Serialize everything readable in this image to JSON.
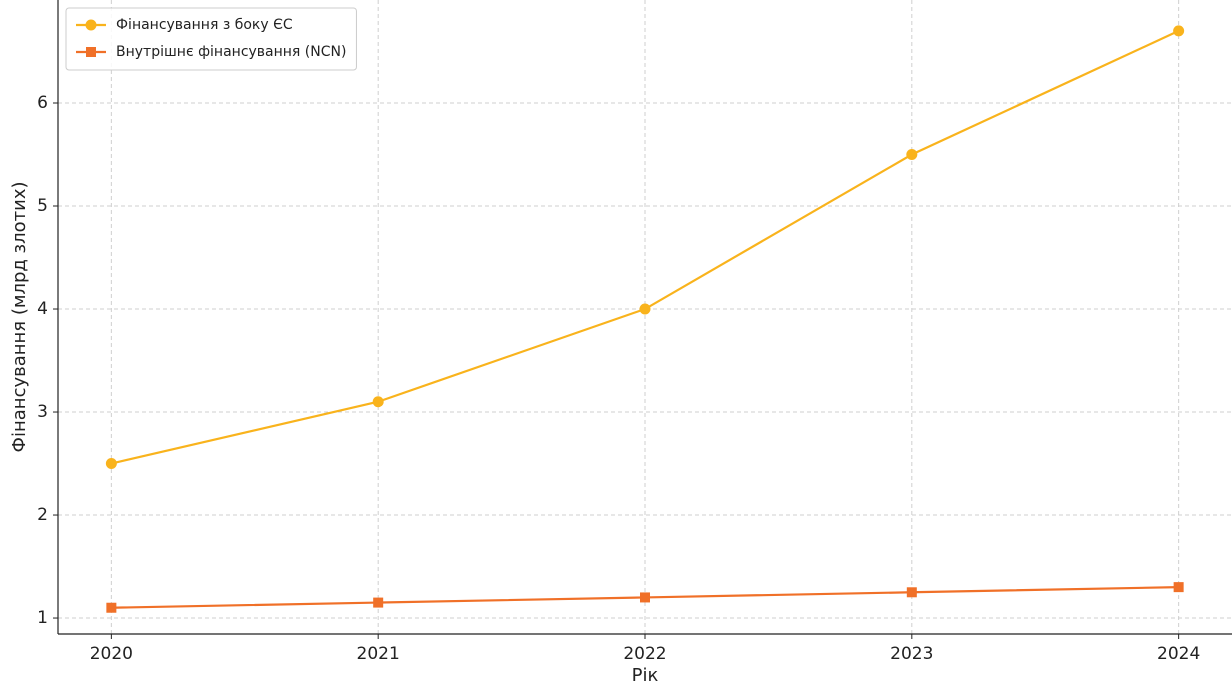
{
  "chart_data": {
    "type": "line",
    "xlabel": "Рік",
    "ylabel": "Фінансування (млрд злотих)",
    "x": [
      2020,
      2021,
      2022,
      2023,
      2024
    ],
    "series": [
      {
        "name": "Фінансування з боку ЄС",
        "color": "#f9b31c",
        "marker": "circle",
        "values": [
          2.5,
          3.1,
          4.0,
          5.5,
          6.7
        ]
      },
      {
        "name": "Внутрішнє фінансування (NCN)",
        "color": "#f07028",
        "marker": "square",
        "values": [
          1.1,
          1.15,
          1.2,
          1.25,
          1.3
        ]
      }
    ],
    "xlim": [
      2019.8,
      2024.2
    ],
    "xticks": [
      2020,
      2021,
      2022,
      2023,
      2024
    ],
    "ylim": [
      0.845,
      7.0
    ],
    "yticks": [
      1,
      2,
      3,
      4,
      5,
      6
    ],
    "grid": true,
    "legend": "upper left"
  }
}
